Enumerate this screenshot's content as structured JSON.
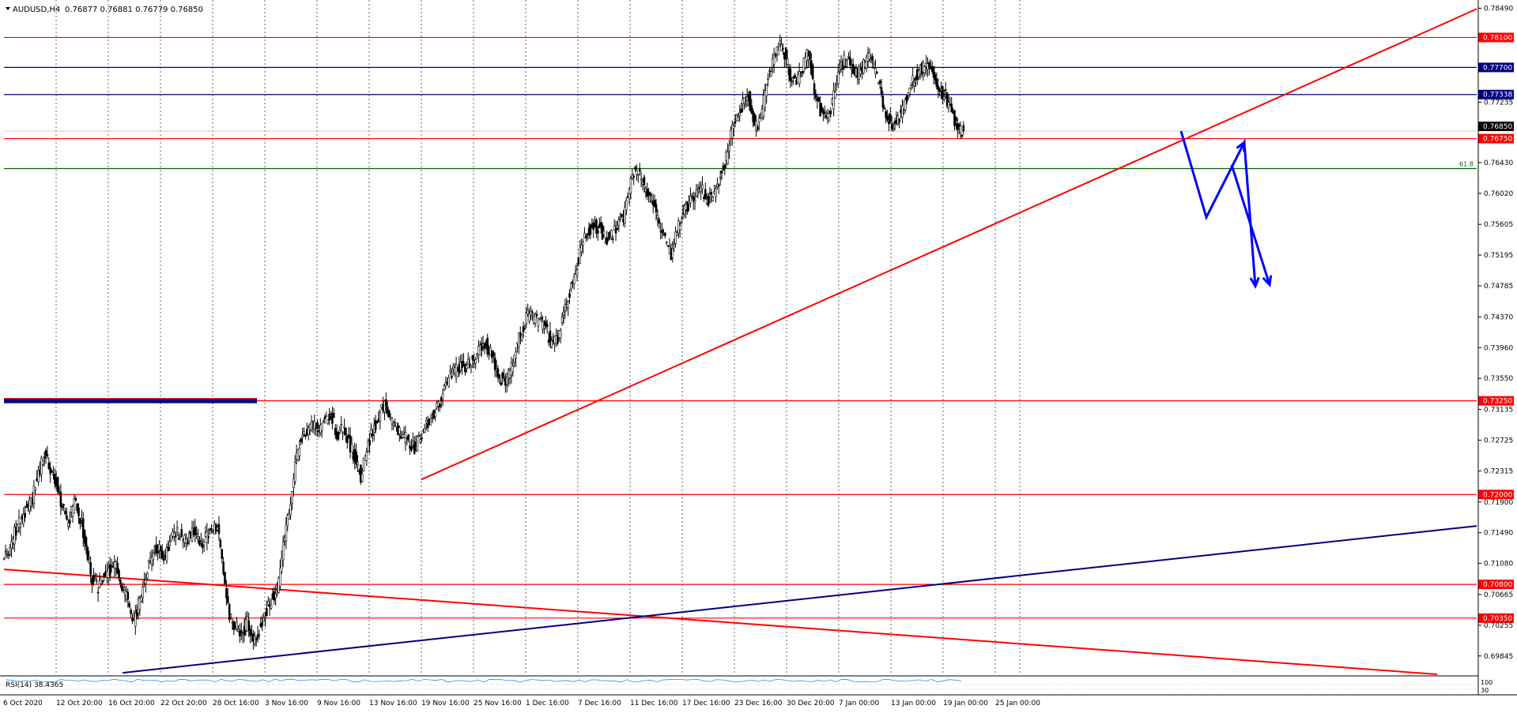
{
  "header": {
    "symbol": "AUDUSD,H4",
    "ohlc": "0.76877 0.76881 0.76779 0.76850"
  },
  "rsi": {
    "label": "RSI(14) 38.4365",
    "levels": [
      "100",
      "30"
    ],
    "color": "#1e90ff"
  },
  "colors": {
    "candle": "#000000",
    "support_resistance": "#ff0000",
    "blue_levels": "#000080",
    "fib_line": "#006400",
    "projection": "#0000ff",
    "price_tag_red": "#ff0000",
    "price_tag_blue": "#000080",
    "price_tag_current": "#000000"
  },
  "chart_data": {
    "type": "candlestick",
    "instrument": "AUDUSD",
    "timeframe": "H4",
    "ylim": [
      0.696,
      0.786
    ],
    "x_ticks": [
      "6 Oct 2020",
      "12 Oct 20:00",
      "16 Oct 20:00",
      "22 Oct 20:00",
      "28 Oct 16:00",
      "3 Nov 16:00",
      "9 Nov 16:00",
      "13 Nov 16:00",
      "19 Nov 16:00",
      "25 Nov 16:00",
      "1 Dec 16:00",
      "7 Dec 16:00",
      "11 Dec 16:00",
      "17 Dec 16:00",
      "23 Dec 16:00",
      "30 Dec 20:00",
      "7 Jan 00:00",
      "13 Jan 00:00",
      "19 Jan 00:00",
      "25 Jan 00:00"
    ],
    "y_ticks": [
      "0.78490",
      "0.77235",
      "0.76430",
      "0.76020",
      "0.75605",
      "0.75195",
      "0.74785",
      "0.74370",
      "0.73960",
      "0.73550",
      "0.73135",
      "0.72725",
      "0.72315",
      "0.71900",
      "0.71490",
      "0.71080",
      "0.70665",
      "0.70255",
      "0.69845"
    ],
    "horizontal_levels": [
      {
        "price": 0.781,
        "label": "0.78100",
        "style": "red"
      },
      {
        "price": 0.777,
        "label": "0.77700",
        "style": "blue"
      },
      {
        "price": 0.77338,
        "label": "0.77338",
        "style": "blue"
      },
      {
        "price": 0.7675,
        "label": "0.76750",
        "style": "red"
      },
      {
        "price": 0.7635,
        "label": "61.8",
        "style": "fib"
      },
      {
        "price": 0.7325,
        "label": "0.73250",
        "style": "red"
      },
      {
        "price": 0.72,
        "label": "0.72000",
        "style": "red"
      },
      {
        "price": 0.708,
        "label": "0.70800",
        "style": "red"
      },
      {
        "price": 0.7035,
        "label": "0.70350",
        "style": "red"
      }
    ],
    "current_price": {
      "price": 0.7685,
      "label": "0.76850"
    },
    "close_series": [
      0.712,
      0.715,
      0.7165,
      0.718,
      0.7195,
      0.723,
      0.725,
      0.7235,
      0.7215,
      0.7185,
      0.716,
      0.719,
      0.717,
      0.713,
      0.7085,
      0.7075,
      0.709,
      0.71,
      0.711,
      0.708,
      0.7055,
      0.703,
      0.706,
      0.7095,
      0.712,
      0.713,
      0.7115,
      0.7135,
      0.715,
      0.7145,
      0.714,
      0.715,
      0.7135,
      0.714,
      0.715,
      0.716,
      0.7095,
      0.7035,
      0.7025,
      0.701,
      0.703,
      0.7005,
      0.702,
      0.704,
      0.706,
      0.707,
      0.713,
      0.718,
      0.724,
      0.7275,
      0.7285,
      0.7295,
      0.728,
      0.73,
      0.731,
      0.728,
      0.729,
      0.727,
      0.725,
      0.7225,
      0.726,
      0.7285,
      0.7305,
      0.732,
      0.73,
      0.729,
      0.728,
      0.727,
      0.726,
      0.728,
      0.7295,
      0.7305,
      0.732,
      0.734,
      0.736,
      0.7365,
      0.737,
      0.7375,
      0.738,
      0.7395,
      0.74,
      0.7385,
      0.736,
      0.735,
      0.7365,
      0.7395,
      0.742,
      0.744,
      0.7435,
      0.743,
      0.742,
      0.74,
      0.741,
      0.744,
      0.747,
      0.75,
      0.753,
      0.755,
      0.756,
      0.7555,
      0.754,
      0.7545,
      0.756,
      0.757,
      0.761,
      0.7635,
      0.762,
      0.76,
      0.759,
      0.756,
      0.754,
      0.752,
      0.7555,
      0.7575,
      0.759,
      0.76,
      0.761,
      0.759,
      0.76,
      0.762,
      0.764,
      0.768,
      0.77,
      0.772,
      0.773,
      0.769,
      0.77,
      0.775,
      0.778,
      0.78,
      0.779,
      0.776,
      0.775,
      0.777,
      0.779,
      0.774,
      0.771,
      0.77,
      0.772,
      0.776,
      0.778,
      0.7775,
      0.776,
      0.7765,
      0.779,
      0.777,
      0.774,
      0.771,
      0.769,
      0.77,
      0.772,
      0.774,
      0.776,
      0.777,
      0.7775,
      0.776,
      0.774,
      0.773,
      0.771,
      0.769,
      0.7685
    ]
  }
}
